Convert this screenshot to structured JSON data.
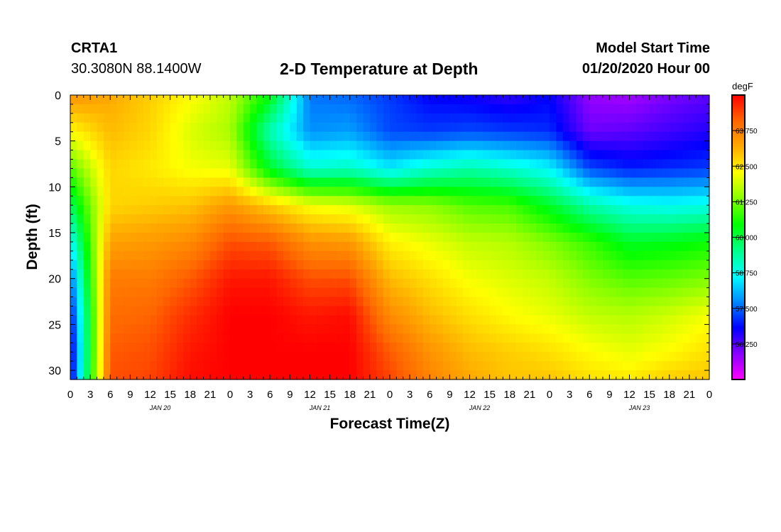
{
  "header": {
    "station": "CRTA1",
    "coordinates": "30.3080N 88.1400W",
    "title": "2-D Temperature at Depth",
    "start_label": "Model Start Time",
    "start_value": "01/20/2020 Hour 00"
  },
  "chart_data": {
    "type": "heatmap",
    "xlabel": "Forecast Time(Z)",
    "ylabel": "Depth (ft)",
    "x_unit": "hours since 01/20/2020 00Z",
    "xlim": [
      0,
      96
    ],
    "ylim": [
      0,
      31
    ],
    "y_inverted": true,
    "x_ticks": [
      0,
      3,
      6,
      9,
      12,
      15,
      18,
      21,
      24,
      27,
      30,
      33,
      36,
      39,
      42,
      45,
      48,
      51,
      54,
      57,
      60,
      63,
      66,
      69,
      72,
      75,
      78,
      81,
      84,
      87,
      90,
      93,
      96
    ],
    "x_tick_labels": [
      "0",
      "3",
      "6",
      "9",
      "12",
      "15",
      "18",
      "21",
      "0",
      "3",
      "6",
      "9",
      "12",
      "15",
      "18",
      "21",
      "0",
      "3",
      "6",
      "9",
      "12",
      "15",
      "18",
      "21",
      "0",
      "3",
      "6",
      "9",
      "12",
      "15",
      "18",
      "21",
      "0"
    ],
    "date_labels": [
      {
        "x": 12,
        "label": "JAN 20"
      },
      {
        "x": 36,
        "label": "JAN 21"
      },
      {
        "x": 60,
        "label": "JAN 22"
      },
      {
        "x": 84,
        "label": "JAN 23"
      }
    ],
    "y_ticks": [
      0,
      5,
      10,
      15,
      20,
      25,
      30
    ],
    "y_tick_labels": [
      "0",
      "5",
      "10",
      "15",
      "20",
      "25",
      "30"
    ],
    "colorbar": {
      "unit": "degF",
      "range": [
        55.0,
        65.0
      ],
      "ticks": [
        56.25,
        57.5,
        58.75,
        60.0,
        61.25,
        62.5,
        63.75
      ],
      "tick_labels": [
        "56.250",
        "57.500",
        "58.750",
        "60.000",
        "61.250",
        "62.500",
        "63.750"
      ],
      "colors": [
        "#ff00ff",
        "#8800ff",
        "#0000ff",
        "#0088ff",
        "#00ffff",
        "#00ff88",
        "#00ff00",
        "#88ff00",
        "#ffff00",
        "#ffaa00",
        "#ff6600",
        "#ff0000"
      ]
    },
    "grid": {
      "hours": [
        0,
        6,
        12,
        18,
        24,
        30,
        36,
        42,
        48,
        54,
        60,
        66,
        72,
        78,
        84,
        90,
        96
      ],
      "depths": [
        0,
        4,
        8,
        12,
        16,
        20,
        24,
        28,
        31
      ],
      "values": [
        [
          63.5,
          62.3,
          61.0,
          59.8,
          58.6,
          57.5,
          56.8,
          56.5,
          56.6
        ],
        [
          63.2,
          63.0,
          62.7,
          62.7,
          63.3,
          63.8,
          64.0,
          64.2,
          64.3
        ],
        [
          62.8,
          62.7,
          62.5,
          62.8,
          63.4,
          63.8,
          64.1,
          64.3,
          64.4
        ],
        [
          62.3,
          62.0,
          62.2,
          62.9,
          63.6,
          64.2,
          64.6,
          64.8,
          64.9
        ],
        [
          61.8,
          61.6,
          62.1,
          63.4,
          64.3,
          64.8,
          65.0,
          65.0,
          65.0
        ],
        [
          60.4,
          59.2,
          60.2,
          62.8,
          64.2,
          64.8,
          65.0,
          65.0,
          65.0
        ],
        [
          57.6,
          57.8,
          59.0,
          62.2,
          63.5,
          64.3,
          64.8,
          65.0,
          65.0
        ],
        [
          57.5,
          57.9,
          59.1,
          62.0,
          63.4,
          64.3,
          64.9,
          65.0,
          65.0
        ],
        [
          57.2,
          57.3,
          58.5,
          61.5,
          62.4,
          63.0,
          63.6,
          64.2,
          64.4
        ],
        [
          56.8,
          57.2,
          59.0,
          61.4,
          62.1,
          62.6,
          63.0,
          63.5,
          63.7
        ],
        [
          56.7,
          57.3,
          59.3,
          61.0,
          61.8,
          62.2,
          62.6,
          63.0,
          63.2
        ],
        [
          56.5,
          57.2,
          59.0,
          60.9,
          61.7,
          62.0,
          62.3,
          62.8,
          62.9
        ],
        [
          56.8,
          57.1,
          58.6,
          60.2,
          61.3,
          61.8,
          62.1,
          62.6,
          62.9
        ],
        [
          55.8,
          56.1,
          57.3,
          59.3,
          60.8,
          61.3,
          61.8,
          62.3,
          62.6
        ],
        [
          55.7,
          56.2,
          57.0,
          58.8,
          60.2,
          61.0,
          61.7,
          62.1,
          62.5
        ],
        [
          56.0,
          56.4,
          57.1,
          58.7,
          60.3,
          61.1,
          61.9,
          62.3,
          62.8
        ],
        [
          56.2,
          56.6,
          57.2,
          58.8,
          60.5,
          61.3,
          62.2,
          62.6,
          62.9
        ]
      ]
    }
  }
}
